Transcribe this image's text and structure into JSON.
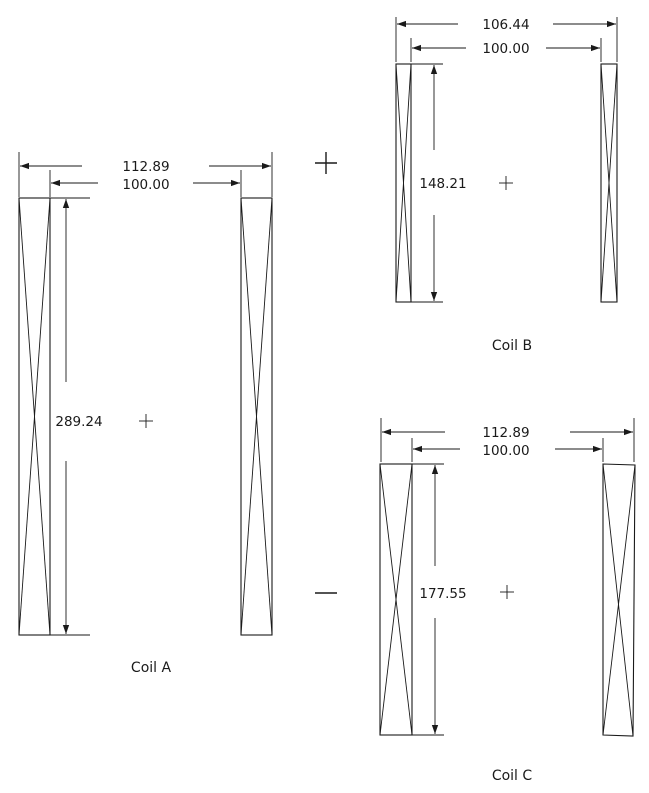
{
  "operators": {
    "plus": "+",
    "minus": "−"
  },
  "coils": {
    "a": {
      "caption": "Coil A",
      "outer_width": "112.89",
      "inner_width": "100.00",
      "height": "289.24"
    },
    "b": {
      "caption": "Coil B",
      "outer_width": "106.44",
      "inner_width": "100.00",
      "height": "148.21"
    },
    "c": {
      "caption": "Coil C",
      "outer_width": "112.89",
      "inner_width": "100.00",
      "height": "177.55"
    }
  }
}
